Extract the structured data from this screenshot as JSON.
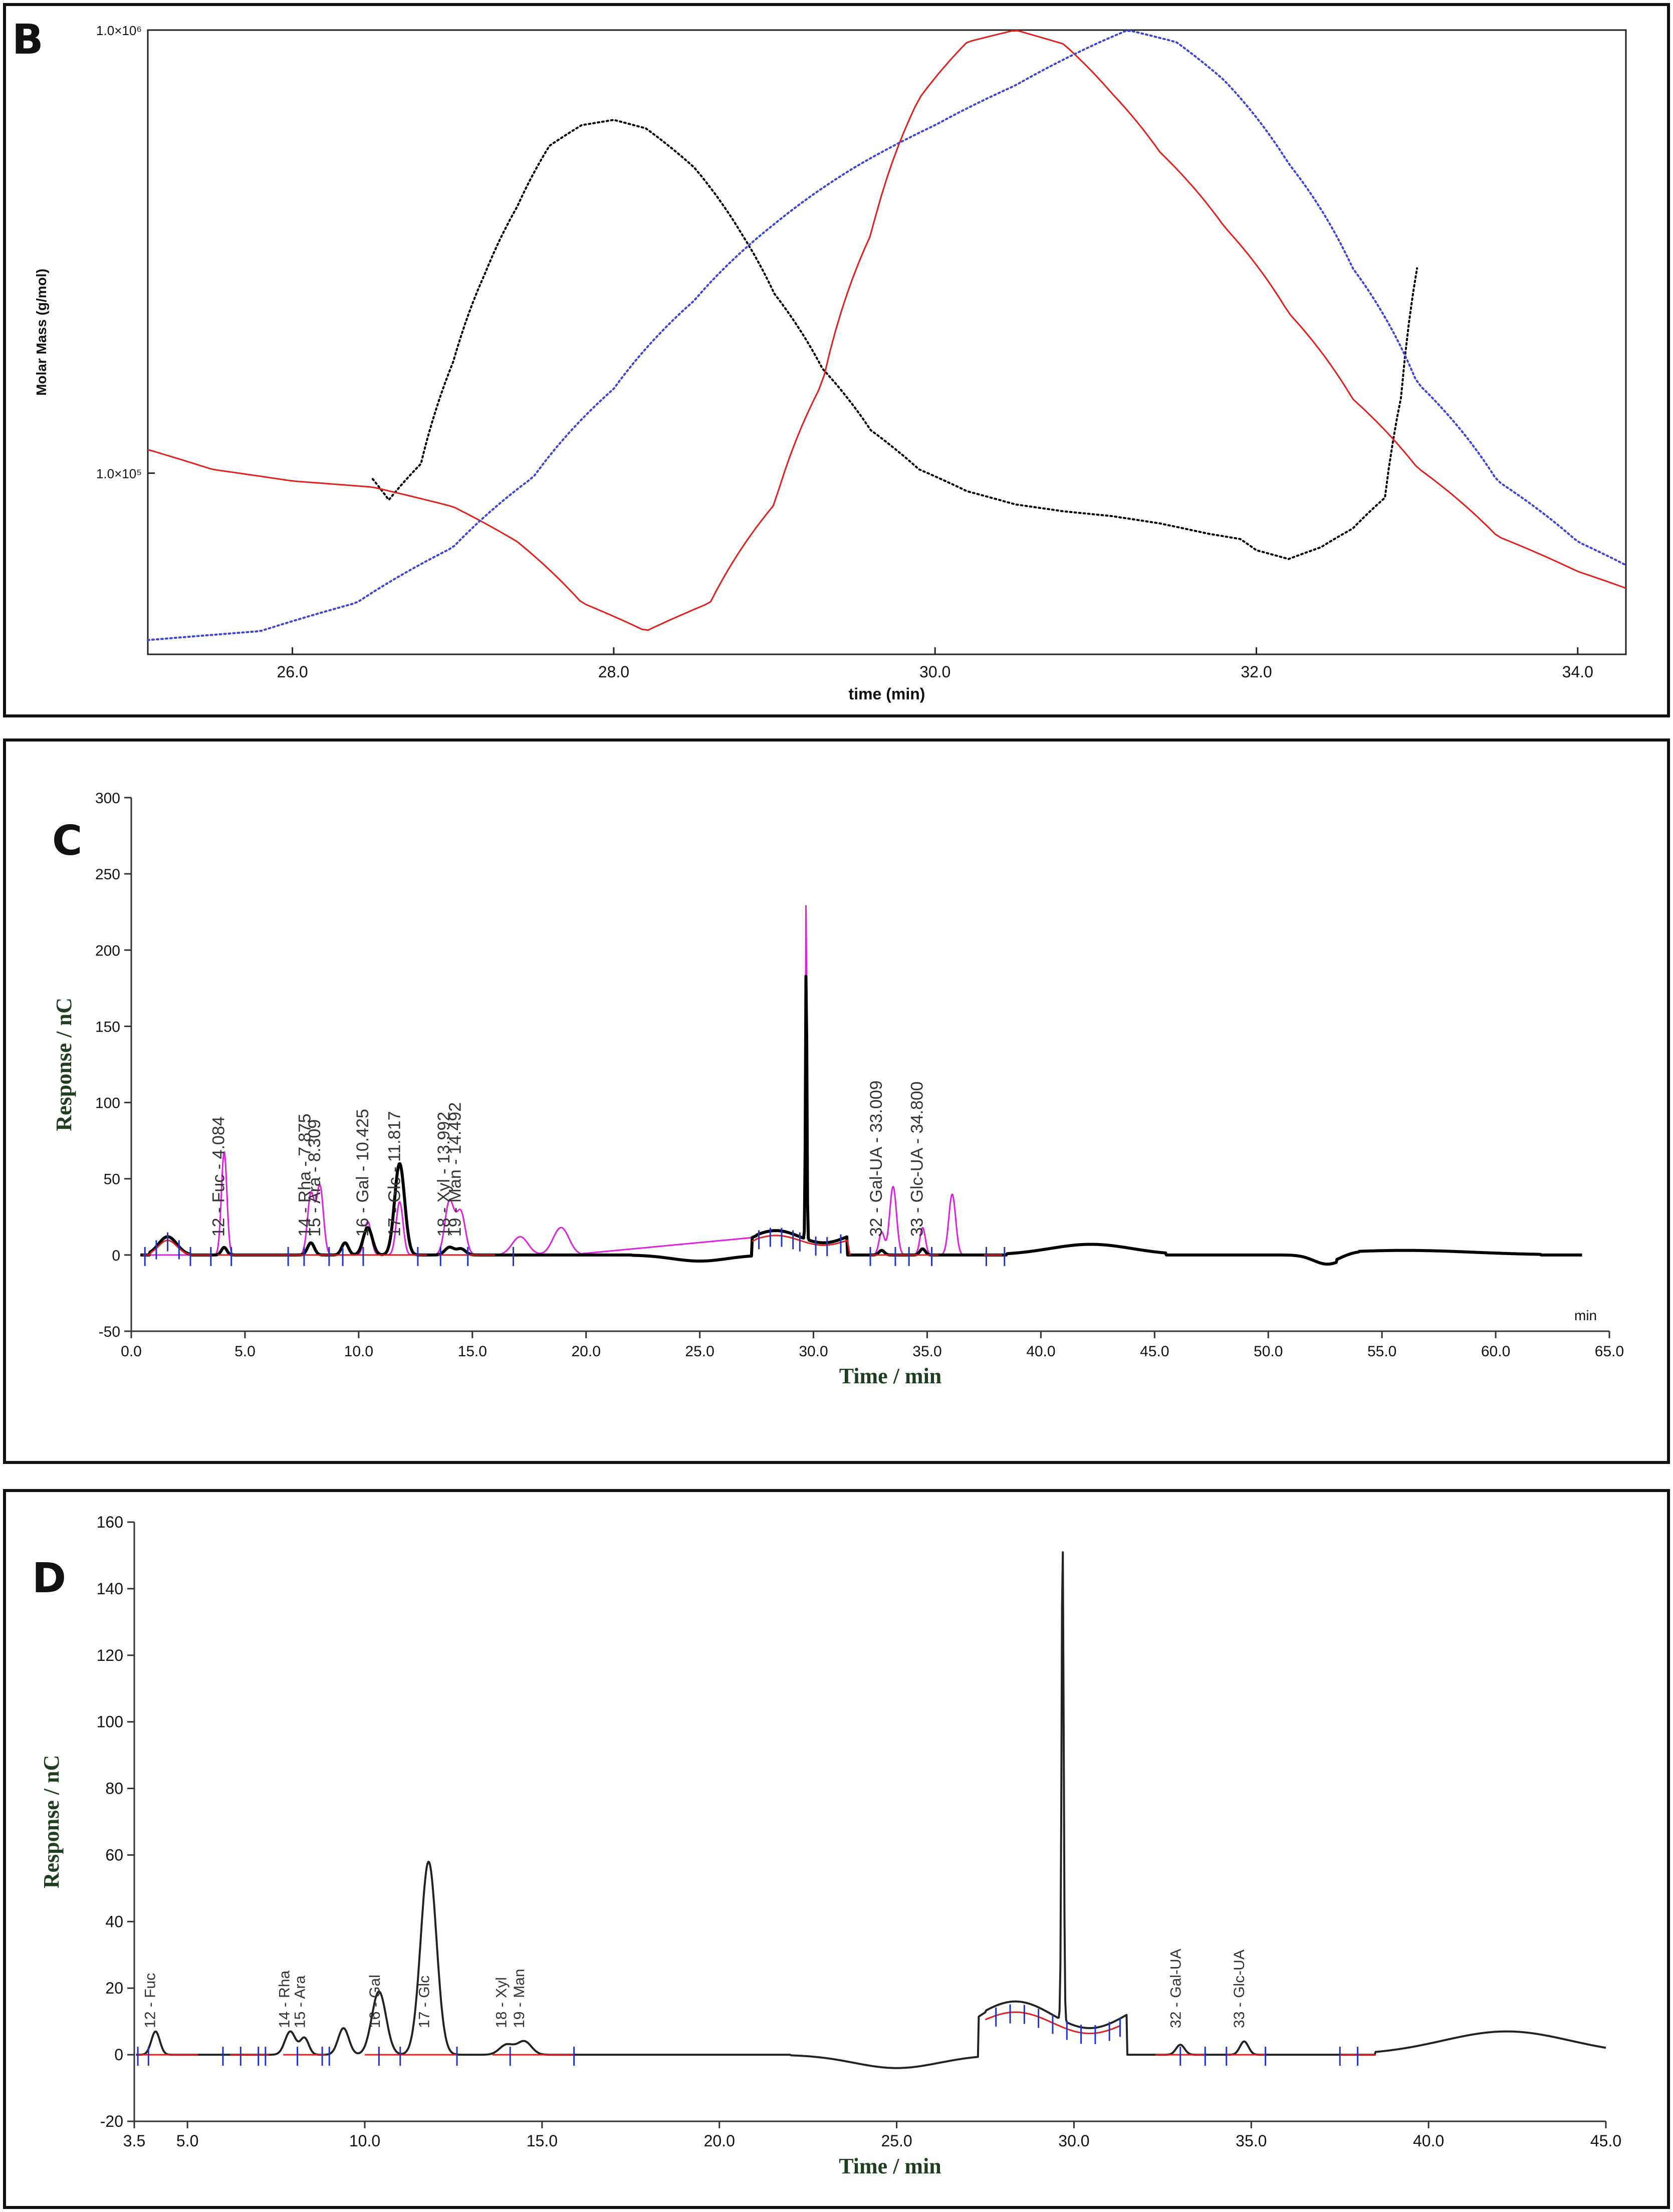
{
  "chart_data": [
    {
      "panel_label": "B",
      "type": "line",
      "title": "",
      "xlabel": "time (min)",
      "ylabel": "Molar Mass (g/mol)",
      "x_ticks": [
        "26.0",
        "28.0",
        "30.0",
        "32.0",
        "34.0"
      ],
      "y_ticks": [
        {
          "label": "1.0×10⁶",
          "value": 1000000
        },
        {
          "label": "1.0×10⁵",
          "value": 100000
        }
      ],
      "xlim": [
        25.1,
        34.3
      ],
      "ylim_log": [
        39000,
        1000000
      ],
      "series": [
        {
          "name": "molar-mass",
          "color": "#000000",
          "style": "dotted",
          "x": [
            26.5,
            26.6,
            26.8,
            27.0,
            27.2,
            27.4,
            27.6,
            27.8,
            28.0,
            28.2,
            28.5,
            28.8,
            29.0,
            29.3,
            29.6,
            29.9,
            30.2,
            30.5,
            30.8,
            31.1,
            31.4,
            31.7,
            31.9,
            32.0,
            32.2,
            32.4,
            32.6,
            32.8,
            32.9,
            33.0
          ],
          "y": [
            97000,
            87000,
            105000,
            178000,
            283000,
            400000,
            548000,
            610000,
            627000,
            600000,
            490000,
            345000,
            254000,
            172000,
            125000,
            102000,
            91000,
            85000,
            82000,
            80000,
            77000,
            73000,
            71000,
            67000,
            64000,
            68000,
            75000,
            88000,
            148000,
            290000
          ]
        },
        {
          "name": "signal-red",
          "color": "#e0201c",
          "style": "solid",
          "x": [
            25.1,
            25.5,
            26.0,
            26.5,
            27.0,
            27.4,
            27.8,
            28.2,
            28.6,
            29.0,
            29.3,
            29.6,
            29.9,
            30.2,
            30.5,
            30.8,
            31.1,
            31.4,
            31.8,
            32.2,
            32.6,
            33.0,
            33.5,
            34.0,
            34.3
          ],
          "y": [
            113000,
            102000,
            96000,
            93000,
            84000,
            70000,
            51000,
            44000,
            51000,
            85000,
            160000,
            345000,
            700000,
            940000,
            1000000,
            930000,
            720000,
            530000,
            360000,
            230000,
            147000,
            103000,
            72000,
            60000,
            55000
          ]
        },
        {
          "name": "signal-blue",
          "color": "#3d45d8",
          "style": "dotted",
          "x": [
            25.1,
            25.8,
            26.4,
            27.0,
            27.5,
            28.0,
            28.5,
            29.0,
            29.5,
            30.0,
            30.5,
            31.0,
            31.2,
            31.5,
            31.8,
            32.2,
            32.6,
            33.0,
            33.5,
            34.0,
            34.3
          ],
          "y": [
            42000,
            44000,
            51000,
            68000,
            98000,
            155000,
            245000,
            365000,
            490000,
            610000,
            750000,
            930000,
            1000000,
            940000,
            770000,
            500000,
            290000,
            160000,
            96000,
            70000,
            62000
          ]
        }
      ]
    },
    {
      "panel_label": "C",
      "type": "line",
      "title": "",
      "xlabel": "Time / min",
      "ylabel": "Response / nC",
      "unit_label": "min",
      "x_ticks": [
        "0.0",
        "5.0",
        "10.0",
        "15.0",
        "20.0",
        "25.0",
        "30.0",
        "35.0",
        "40.0",
        "45.0",
        "50.0",
        "55.0",
        "60.0",
        "65.0"
      ],
      "y_ticks": [
        "-50",
        "0",
        "50",
        "100",
        "150",
        "200",
        "250",
        "300"
      ],
      "xlim": [
        0,
        65
      ],
      "ylim": [
        -50,
        300
      ],
      "series": [
        {
          "name": "standard",
          "color": "#e020e0",
          "peaks": [
            [
              4.084,
              68,
              0.12
            ],
            [
              7.9,
              40,
              0.15
            ],
            [
              8.3,
              45,
              0.15
            ],
            [
              10.4,
              22,
              0.15
            ],
            [
              11.8,
              35,
              0.15
            ],
            [
              13.99,
              35,
              0.2
            ],
            [
              14.49,
              28,
              0.2
            ],
            [
              17.1,
              12,
              0.35
            ],
            [
              18.9,
              18,
              0.35
            ],
            [
              29.68,
              232,
              0.03
            ],
            [
              33.0,
              15,
              0.12
            ],
            [
              33.5,
              45,
              0.15
            ],
            [
              34.8,
              18,
              0.12
            ],
            [
              36.1,
              40,
              0.15
            ]
          ]
        },
        {
          "name": "sample",
          "color": "#000000",
          "peaks": [
            [
              4.084,
              5,
              0.12
            ],
            [
              7.9,
              8,
              0.15
            ],
            [
              9.4,
              8,
              0.15
            ],
            [
              10.4,
              18,
              0.2
            ],
            [
              11.8,
              60,
              0.22
            ],
            [
              13.99,
              5,
              0.2
            ],
            [
              14.5,
              4,
              0.2
            ],
            [
              29.68,
              183,
              0.03
            ],
            [
              33.0,
              3,
              0.12
            ],
            [
              34.8,
              4,
              0.12
            ]
          ]
        },
        {
          "name": "baseline",
          "color": "#e0201c"
        }
      ],
      "peak_labels": [
        {
          "x": 4.084,
          "text": "12 - Fuc - 4.084"
        },
        {
          "x": 7.875,
          "text": "14 - Rha - 7.875"
        },
        {
          "x": 8.309,
          "text": "15 - Ara - 8.309"
        },
        {
          "x": 10.425,
          "text": "16 - Gal - 10.425"
        },
        {
          "x": 11.817,
          "text": "17 - Glc - 11.817"
        },
        {
          "x": 13.992,
          "text": "18 - Xyl - 13.992"
        },
        {
          "x": 14.492,
          "text": "19 - Man - 14.492"
        },
        {
          "x": 33.009,
          "text": "32 - Gal-UA - 33.009"
        },
        {
          "x": 34.8,
          "text": "33 - Glc-UA - 34.800"
        }
      ]
    },
    {
      "panel_label": "D",
      "type": "line",
      "title": "",
      "xlabel": "Time / min",
      "ylabel": "Response / nC",
      "x_ticks": [
        "3.5",
        "5.0",
        "10.0",
        "15.0",
        "20.0",
        "25.0",
        "30.0",
        "35.0",
        "40.0",
        "45.0"
      ],
      "x_tick_values": [
        3.5,
        5,
        10,
        15,
        20,
        25,
        30,
        35,
        40,
        45
      ],
      "y_ticks": [
        "-20",
        "0",
        "20",
        "40",
        "60",
        "80",
        "100",
        "120",
        "140",
        "160"
      ],
      "xlim": [
        3.5,
        45
      ],
      "ylim": [
        -20,
        160
      ],
      "series": [
        {
          "name": "sample",
          "color": "#222222",
          "peaks": [
            [
              4.1,
              7,
              0.12
            ],
            [
              7.9,
              7,
              0.15
            ],
            [
              8.3,
              5,
              0.12
            ],
            [
              9.4,
              8,
              0.15
            ],
            [
              10.4,
              19,
              0.2
            ],
            [
              11.8,
              58,
              0.22
            ],
            [
              14.0,
              3,
              0.2
            ],
            [
              14.5,
              4,
              0.2
            ],
            [
              29.68,
              144,
              0.03
            ],
            [
              33.0,
              3,
              0.12
            ],
            [
              34.8,
              4,
              0.12
            ]
          ]
        },
        {
          "name": "baseline",
          "color": "#e0201c"
        }
      ],
      "peak_labels": [
        {
          "x": 4.084,
          "text": "12 - Fuc"
        },
        {
          "x": 7.875,
          "text": "14 - Rha"
        },
        {
          "x": 8.309,
          "text": "15 - Ara"
        },
        {
          "x": 10.425,
          "text": "16 - Gal"
        },
        {
          "x": 11.817,
          "text": "17 - Glc"
        },
        {
          "x": 13.992,
          "text": "18 - Xyl"
        },
        {
          "x": 14.492,
          "text": "19 - Man"
        },
        {
          "x": 33.009,
          "text": "32 - Gal-UA"
        },
        {
          "x": 34.8,
          "text": "33 - Glc-UA"
        }
      ]
    }
  ]
}
